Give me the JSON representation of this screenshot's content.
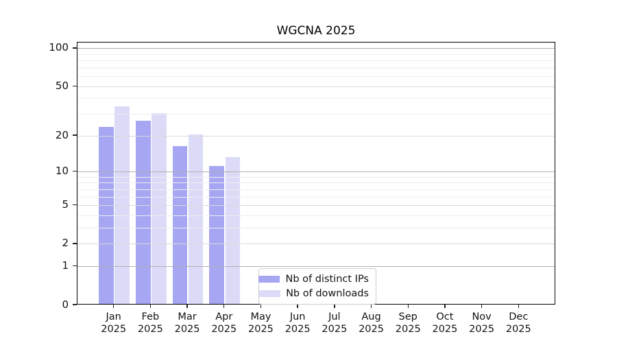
{
  "chart_data": {
    "type": "bar",
    "title": "WGCNA 2025",
    "x_tick_year": "2025",
    "categories": [
      "Jan",
      "Feb",
      "Mar",
      "Apr",
      "May",
      "Jun",
      "Jul",
      "Aug",
      "Sep",
      "Oct",
      "Nov",
      "Dec"
    ],
    "series": [
      {
        "name": "Nb of distinct IPs",
        "color": "#a6a6f3",
        "values": [
          23,
          26,
          16,
          11,
          null,
          null,
          null,
          null,
          null,
          null,
          null,
          null
        ]
      },
      {
        "name": "Nb of downloads",
        "color": "#dbdbf8",
        "values": [
          34,
          30,
          20,
          13,
          null,
          null,
          null,
          null,
          null,
          null,
          null,
          null
        ]
      }
    ],
    "y_axis": {
      "scale": "log1p",
      "tick_labels": [
        0,
        1,
        2,
        5,
        10,
        20,
        50,
        100
      ],
      "major_gridlines": [
        1,
        10,
        100
      ],
      "labeled_gridlines": [
        2,
        5,
        20,
        50
      ],
      "minor_gridlines": [
        3,
        4,
        6,
        7,
        8,
        9,
        30,
        40,
        60,
        70,
        80,
        90
      ],
      "ymax": 111.6,
      "ymin": 0
    },
    "legend_position": "lower center",
    "grid": true
  },
  "colors": {
    "grid_major": "#b0b0b0",
    "grid_labeled": "#d9d9d9",
    "grid_minor": "#eeeeee",
    "spine": "#000000",
    "text": "#111111",
    "background": "#ffffff"
  }
}
